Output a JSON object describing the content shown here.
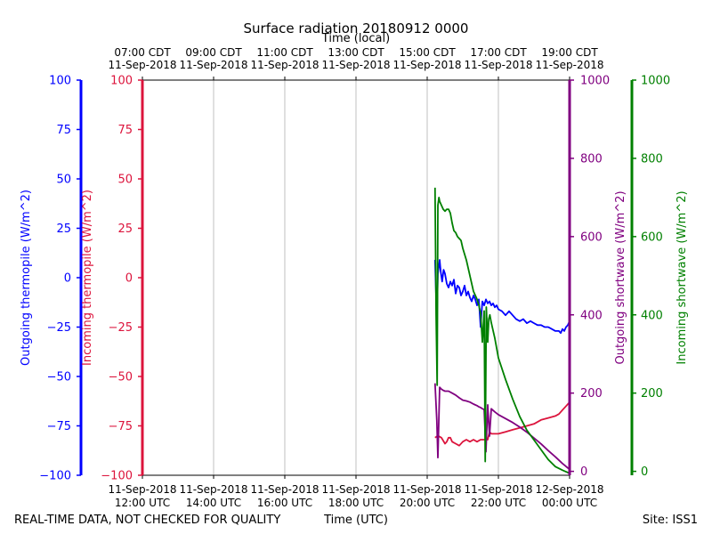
{
  "chart_data": {
    "type": "line",
    "title": "Surface radiation 20180912 0000",
    "top_axis_label": "Time (local)",
    "xlabel": "Time (UTC)",
    "footer_left": "REAL-TIME DATA, NOT CHECKED FOR QUALITY",
    "footer_right": "Site: ISS1",
    "x_range_hours_utc": [
      12,
      24
    ],
    "x_ticks_bottom": [
      {
        "hour": 12,
        "line1": "11-Sep-2018",
        "line2": "12:00 UTC"
      },
      {
        "hour": 14,
        "line1": "11-Sep-2018",
        "line2": "14:00 UTC"
      },
      {
        "hour": 16,
        "line1": "11-Sep-2018",
        "line2": "16:00 UTC"
      },
      {
        "hour": 18,
        "line1": "11-Sep-2018",
        "line2": "18:00 UTC"
      },
      {
        "hour": 20,
        "line1": "11-Sep-2018",
        "line2": "20:00 UTC"
      },
      {
        "hour": 22,
        "line1": "11-Sep-2018",
        "line2": "22:00 UTC"
      },
      {
        "hour": 24,
        "line1": "12-Sep-2018",
        "line2": "00:00 UTC"
      }
    ],
    "x_ticks_top": [
      {
        "hour": 12,
        "line1": "07:00 CDT",
        "line2": "11-Sep-2018"
      },
      {
        "hour": 14,
        "line1": "09:00 CDT",
        "line2": "11-Sep-2018"
      },
      {
        "hour": 16,
        "line1": "11:00 CDT",
        "line2": "11-Sep-2018"
      },
      {
        "hour": 18,
        "line1": "13:00 CDT",
        "line2": "11-Sep-2018"
      },
      {
        "hour": 20,
        "line1": "15:00 CDT",
        "line2": "11-Sep-2018"
      },
      {
        "hour": 22,
        "line1": "17:00 CDT",
        "line2": "11-Sep-2018"
      },
      {
        "hour": 24,
        "line1": "19:00 CDT",
        "line2": "11-Sep-2018"
      }
    ],
    "grid": "x-only",
    "axes": [
      {
        "id": "ot",
        "label": "Outgoing thermopile (W/m^2)",
        "color": "#0000ff",
        "side": "left",
        "ylim": [
          -100,
          100
        ],
        "ticks": [
          -100,
          -75,
          -50,
          -25,
          0,
          25,
          50,
          75,
          100
        ],
        "tick_labels": [
          "−100",
          "−75",
          "−50",
          "−25",
          "0",
          "25",
          "50",
          "75",
          "100"
        ]
      },
      {
        "id": "it",
        "label": "Incoming thermopile (W/m^2)",
        "color": "#dc143c",
        "side": "left",
        "ylim": [
          -100,
          100
        ],
        "ticks": [
          -100,
          -75,
          -50,
          -25,
          0,
          25,
          50,
          75,
          100
        ],
        "tick_labels": [
          "−100",
          "−75",
          "−50",
          "−25",
          "0",
          "25",
          "50",
          "75",
          "100"
        ]
      },
      {
        "id": "os",
        "label": "Outgoing shortwave (W/m^2)",
        "color": "#800080",
        "side": "right",
        "ylim": [
          -10,
          1000
        ],
        "ticks": [
          0,
          200,
          400,
          600,
          800,
          1000
        ],
        "tick_labels": [
          "0",
          "200",
          "400",
          "600",
          "800",
          "1000"
        ]
      },
      {
        "id": "is",
        "label": "Incoming shortwave (W/m^2)",
        "color": "#008000",
        "side": "right",
        "ylim": [
          -10,
          1000
        ],
        "ticks": [
          0,
          200,
          400,
          600,
          800,
          1000
        ],
        "tick_labels": [
          "0",
          "200",
          "400",
          "600",
          "800",
          "1000"
        ]
      }
    ],
    "series": [
      {
        "name": "Outgoing thermopile",
        "axis": "ot",
        "color": "#0000ff",
        "x": [
          20.22,
          20.27,
          20.3,
          20.35,
          20.38,
          20.42,
          20.46,
          20.5,
          20.55,
          20.6,
          20.65,
          20.7,
          20.75,
          20.8,
          20.85,
          20.9,
          20.95,
          21.0,
          21.05,
          21.1,
          21.15,
          21.2,
          21.25,
          21.3,
          21.35,
          21.4,
          21.45,
          21.5,
          21.55,
          21.6,
          21.65,
          21.7,
          21.75,
          21.8,
          21.85,
          21.9,
          21.95,
          22.0,
          22.1,
          22.2,
          22.3,
          22.4,
          22.5,
          22.6,
          22.7,
          22.8,
          22.9,
          23.0,
          23.1,
          23.2,
          23.3,
          23.4,
          23.5,
          23.6,
          23.7,
          23.75,
          23.8,
          23.85,
          23.9,
          23.95,
          24.0
        ],
        "y": [
          9,
          -22,
          2,
          9,
          3,
          -2,
          4,
          2,
          -3,
          -5,
          -2,
          -4,
          -1,
          -8,
          -4,
          -5,
          -9,
          -7,
          -4,
          -9,
          -7,
          -10,
          -12,
          -9,
          -11,
          -14,
          -11,
          -25,
          -12,
          -14,
          -11,
          -13,
          -12,
          -14,
          -13,
          -15,
          -14,
          -16,
          -17,
          -19,
          -17,
          -19,
          -21,
          -22,
          -21,
          -23,
          -22,
          -23,
          -24,
          -24,
          -25,
          -25,
          -26,
          -27,
          -27,
          -28,
          -26,
          -27,
          -25,
          -24,
          -22
        ]
      },
      {
        "name": "Incoming thermopile",
        "axis": "it",
        "color": "#dc143c",
        "x": [
          20.22,
          20.3,
          20.4,
          20.5,
          20.55,
          20.6,
          20.65,
          20.7,
          20.8,
          20.9,
          21.0,
          21.1,
          21.2,
          21.3,
          21.4,
          21.5,
          21.6,
          21.7,
          21.75,
          21.8,
          21.9,
          22.0,
          22.2,
          22.4,
          22.6,
          22.8,
          23.0,
          23.2,
          23.4,
          23.6,
          23.7,
          23.8,
          23.9,
          24.0
        ],
        "y": [
          -81,
          -80,
          -81,
          -84,
          -83,
          -81,
          -81,
          -83,
          -84,
          -85,
          -83,
          -82,
          -83,
          -82,
          -83,
          -82,
          -82,
          -82,
          -78,
          -79,
          -79,
          -79,
          -78,
          -77,
          -76,
          -75,
          -74,
          -72,
          -71,
          -70,
          -69,
          -67,
          -65,
          -63
        ]
      },
      {
        "name": "Outgoing shortwave",
        "axis": "os",
        "color": "#800080",
        "x": [
          20.22,
          20.27,
          20.3,
          20.35,
          20.4,
          20.45,
          20.5,
          20.6,
          20.7,
          20.8,
          20.9,
          21.0,
          21.1,
          21.2,
          21.3,
          21.4,
          21.45,
          21.5,
          21.55,
          21.6,
          21.65,
          21.7,
          21.75,
          21.8,
          21.9,
          22.0,
          22.2,
          22.4,
          22.6,
          22.8,
          23.0,
          23.2,
          23.4,
          23.6,
          23.8,
          24.0
        ],
        "y": [
          225,
          130,
          35,
          215,
          210,
          207,
          205,
          205,
          200,
          195,
          188,
          182,
          180,
          177,
          172,
          168,
          165,
          163,
          160,
          158,
          50,
          170,
          90,
          160,
          152,
          145,
          135,
          125,
          113,
          100,
          85,
          70,
          53,
          37,
          20,
          5
        ]
      },
      {
        "name": "Incoming shortwave",
        "axis": "is",
        "color": "#008000",
        "x": [
          20.22,
          20.25,
          20.28,
          20.3,
          20.33,
          20.35,
          20.4,
          20.45,
          20.5,
          20.55,
          20.6,
          20.65,
          20.7,
          20.75,
          20.8,
          20.85,
          20.9,
          20.95,
          21.0,
          21.1,
          21.2,
          21.3,
          21.4,
          21.45,
          21.5,
          21.55,
          21.6,
          21.63,
          21.66,
          21.7,
          21.73,
          21.76,
          21.8,
          21.9,
          22.0,
          22.2,
          22.4,
          22.6,
          22.8,
          23.0,
          23.2,
          23.4,
          23.6,
          23.8,
          24.0
        ],
        "y": [
          725,
          400,
          220,
          680,
          700,
          690,
          680,
          670,
          665,
          670,
          670,
          660,
          635,
          615,
          610,
          600,
          595,
          590,
          570,
          540,
          500,
          460,
          440,
          425,
          405,
          330,
          410,
          25,
          420,
          330,
          390,
          400,
          380,
          340,
          290,
          235,
          185,
          140,
          105,
          80,
          55,
          30,
          12,
          3,
          -5
        ]
      }
    ]
  }
}
